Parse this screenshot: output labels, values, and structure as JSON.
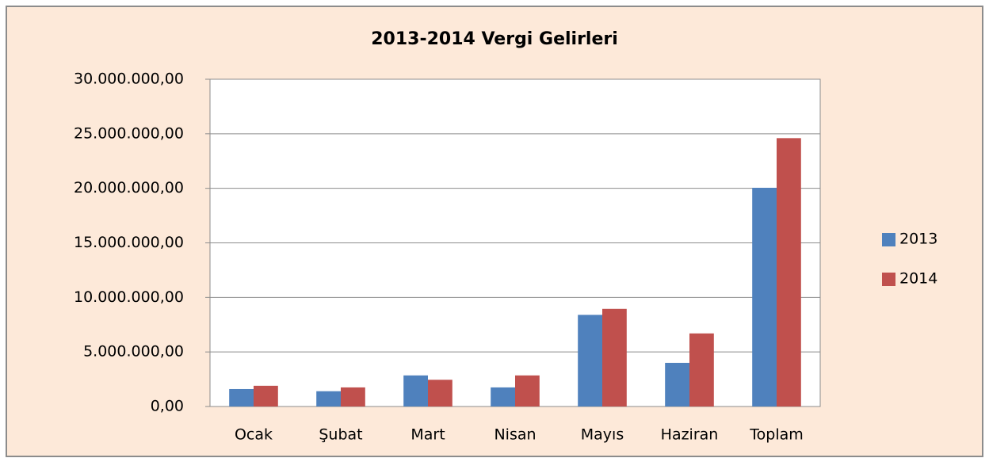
{
  "chart_data": {
    "type": "bar",
    "title": "2013-2014 Vergi Gelirleri",
    "categories": [
      "Ocak",
      "Şubat",
      "Mart",
      "Nisan",
      "Mayıs",
      "Haziran",
      "Toplam"
    ],
    "series": [
      {
        "name": "2013",
        "color": "#4f81bd",
        "values": [
          1600000,
          1400000,
          2850000,
          1750000,
          8400000,
          4000000,
          20050000
        ]
      },
      {
        "name": "2014",
        "color": "#c0504d",
        "values": [
          1900000,
          1750000,
          2450000,
          2850000,
          8950000,
          6700000,
          24600000
        ]
      }
    ],
    "ylim": [
      0,
      30000000
    ],
    "yticks": [
      {
        "value": 0,
        "label": "0,00"
      },
      {
        "value": 5000000,
        "label": "5.000.000,00"
      },
      {
        "value": 10000000,
        "label": "10.000.000,00"
      },
      {
        "value": 15000000,
        "label": "15.000.000,00"
      },
      {
        "value": 20000000,
        "label": "20.000.000,00"
      },
      {
        "value": 25000000,
        "label": "25.000.000,00"
      },
      {
        "value": 30000000,
        "label": "30.000.000,00"
      }
    ],
    "grid": true,
    "legend": "right"
  }
}
